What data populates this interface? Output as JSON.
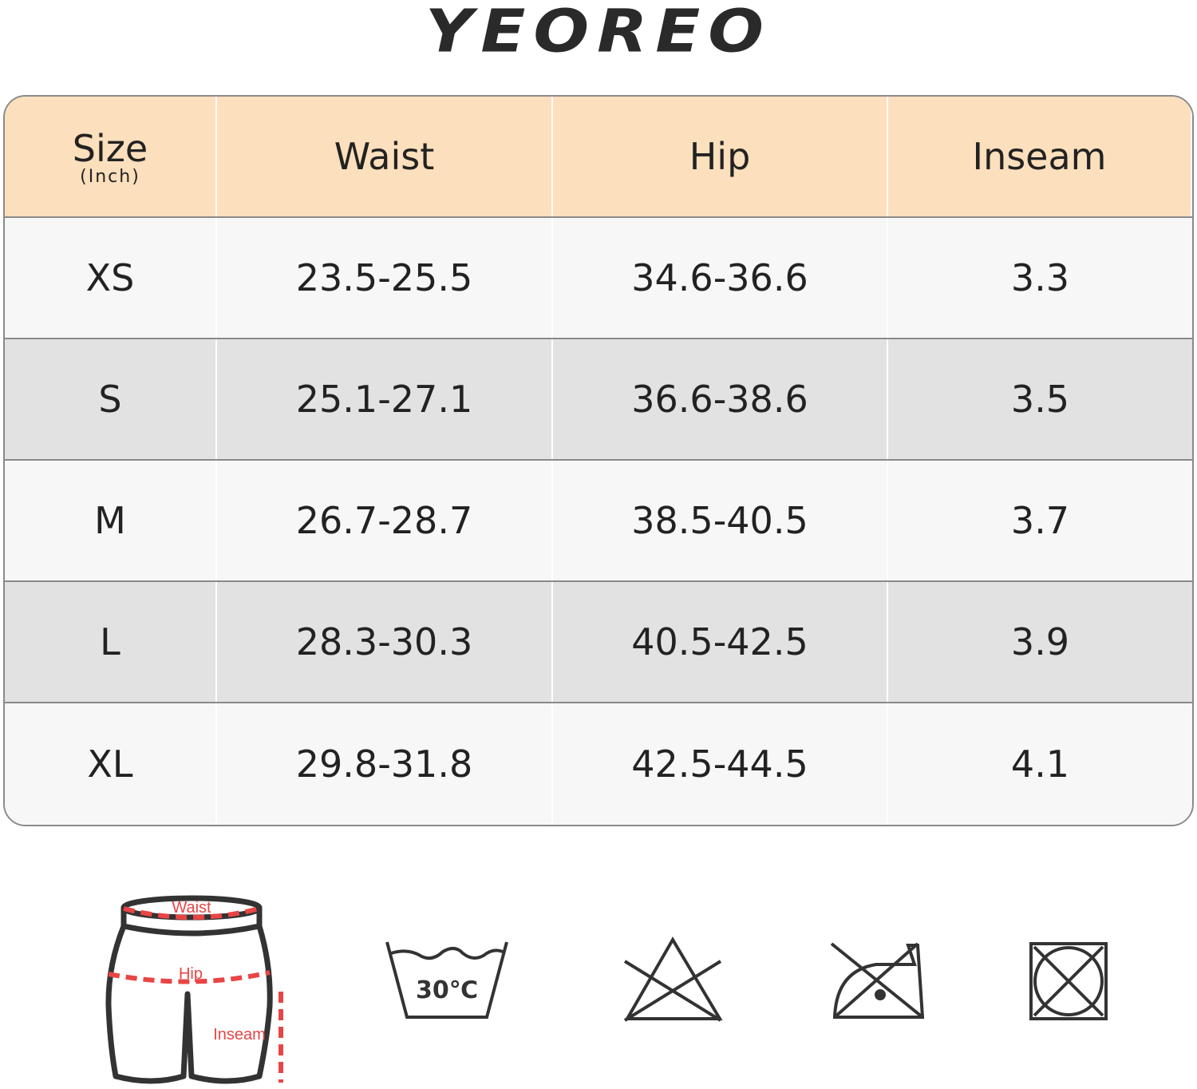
{
  "brand": {
    "logo_text": "YEOREO"
  },
  "table": {
    "headers": [
      {
        "label": "Size",
        "sub": "(Inch)"
      },
      {
        "label": "Waist"
      },
      {
        "label": "Hip"
      },
      {
        "label": "Inseam"
      }
    ],
    "rows": [
      [
        "XS",
        "23.5-25.5",
        "34.6-36.6",
        "3.3"
      ],
      [
        "S",
        "25.1-27.1",
        "36.6-38.6",
        "3.5"
      ],
      [
        "M",
        "26.7-28.7",
        "38.5-40.5",
        "3.7"
      ],
      [
        "L",
        "28.3-30.3",
        "40.5-42.5",
        "3.9"
      ],
      [
        "XL",
        "29.8-31.8",
        "42.5-44.5",
        "4.1"
      ]
    ]
  },
  "diagram": {
    "waist_label": "Waist",
    "hip_label": "Hip",
    "inseam_label": "Inseam",
    "accent": "#e84545"
  },
  "care": {
    "wash_label": "30℃",
    "icons": [
      "wash-30-icon",
      "do-not-bleach-icon",
      "do-not-iron-icon",
      "do-not-tumble-dry-icon"
    ]
  }
}
